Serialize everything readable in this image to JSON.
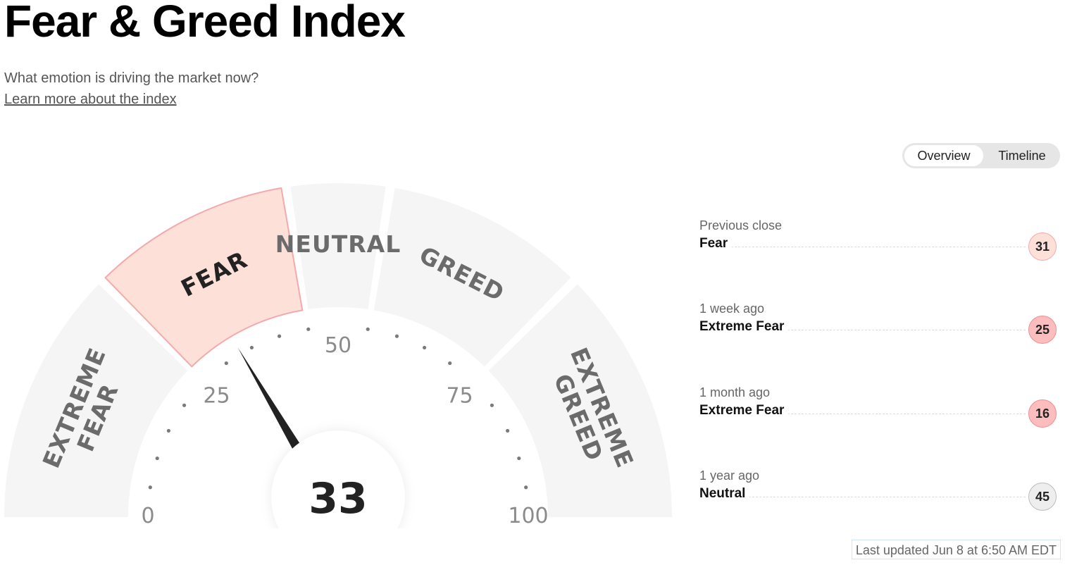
{
  "header": {
    "title": "Fear & Greed Index",
    "subtitle": "What emotion is driving the market now?",
    "learn_more": "Learn more about the index"
  },
  "view_toggle": {
    "options": [
      "Overview",
      "Timeline"
    ],
    "selected": "Overview"
  },
  "gauge": {
    "value": 33,
    "min": 0,
    "max": 100,
    "current_rating": "Fear",
    "scale_labels": [
      "0",
      "25",
      "50",
      "75",
      "100"
    ],
    "segments": [
      {
        "name": "extreme-fear",
        "lines": [
          "EXTREME",
          "FEAR"
        ],
        "from": 0,
        "to": 25,
        "active": false
      },
      {
        "name": "fear",
        "lines": [
          "FEAR"
        ],
        "from": 25,
        "to": 45,
        "active": true
      },
      {
        "name": "neutral",
        "lines": [
          "NEUTRAL"
        ],
        "from": 45,
        "to": 55,
        "active": false
      },
      {
        "name": "greed",
        "lines": [
          "GREED"
        ],
        "from": 55,
        "to": 75,
        "active": false
      },
      {
        "name": "extreme-greed",
        "lines": [
          "EXTREME",
          "GREED"
        ],
        "from": 75,
        "to": 100,
        "active": false
      }
    ],
    "colors": {
      "segment_bg": "#f5f5f5",
      "active_fill": "#fde0d8",
      "active_stroke": "#f4a9ad",
      "needle": "#222222"
    }
  },
  "history": [
    {
      "when": "Previous close",
      "rating": "Fear",
      "value": "31",
      "badge_bg": "#fde0d8",
      "badge_border": "#f4a9ad"
    },
    {
      "when": "1 week ago",
      "rating": "Extreme Fear",
      "value": "25",
      "badge_bg": "#fbbdbd",
      "badge_border": "#ef8e92"
    },
    {
      "when": "1 month ago",
      "rating": "Extreme Fear",
      "value": "16",
      "badge_bg": "#fbbdbd",
      "badge_border": "#ef8e92"
    },
    {
      "when": "1 year ago",
      "rating": "Neutral",
      "value": "45",
      "badge_bg": "#eeeeee",
      "badge_border": "#bbbbbb"
    }
  ],
  "last_updated": "Last updated Jun 8 at 6:50 AM EDT"
}
